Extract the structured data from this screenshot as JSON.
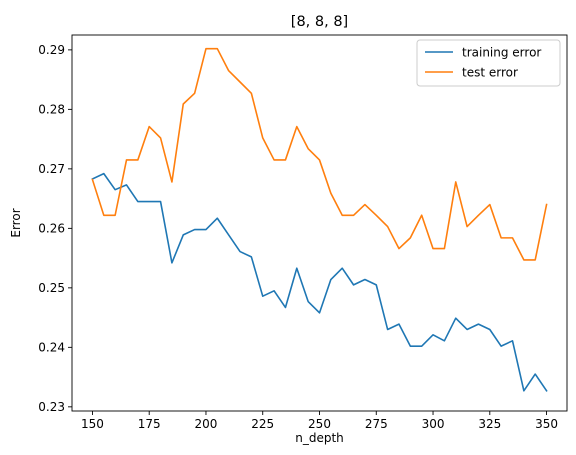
{
  "chart_data": {
    "type": "line",
    "title": "[8, 8, 8]",
    "xlabel": "n_depth",
    "ylabel": "Error",
    "xlim": [
      141,
      359
    ],
    "ylim": [
      0.2293,
      0.2925
    ],
    "xticks": [
      150,
      175,
      200,
      225,
      250,
      275,
      300,
      325,
      350
    ],
    "yticks": [
      0.23,
      0.24,
      0.25,
      0.26,
      0.27,
      0.28,
      0.29
    ],
    "xtick_labels": [
      "150",
      "175",
      "200",
      "225",
      "250",
      "275",
      "300",
      "325",
      "350"
    ],
    "ytick_labels": [
      "0.23",
      "0.24",
      "0.25",
      "0.26",
      "0.27",
      "0.28",
      "0.29"
    ],
    "legend_position": "top-right",
    "grid": false,
    "x": [
      150,
      155,
      160,
      165,
      170,
      175,
      180,
      185,
      190,
      195,
      200,
      205,
      210,
      215,
      220,
      225,
      230,
      235,
      240,
      245,
      250,
      255,
      260,
      265,
      270,
      275,
      280,
      285,
      290,
      295,
      300,
      305,
      310,
      315,
      320,
      325,
      330,
      335,
      340,
      345,
      350
    ],
    "series": [
      {
        "name": "training error",
        "color": "#1f77b4",
        "values": [
          0.2683,
          0.2692,
          0.2665,
          0.2673,
          0.2645,
          0.2645,
          0.2645,
          0.2542,
          0.2589,
          0.2598,
          0.2598,
          0.2617,
          0.2589,
          0.2561,
          0.2552,
          0.2486,
          0.2495,
          0.2467,
          0.2533,
          0.2477,
          0.2458,
          0.2514,
          0.2533,
          0.2505,
          0.2514,
          0.2505,
          0.243,
          0.2439,
          0.2402,
          0.2402,
          0.2421,
          0.2411,
          0.2449,
          0.243,
          0.2439,
          0.243,
          0.2402,
          0.2411,
          0.2327,
          0.2355,
          0.2327
        ]
      },
      {
        "name": "test error",
        "color": "#ff7f0e",
        "values": [
          0.2682,
          0.2622,
          0.2622,
          0.2715,
          0.2715,
          0.2771,
          0.2752,
          0.2678,
          0.2809,
          0.2827,
          0.2902,
          0.2902,
          0.2865,
          0.2846,
          0.2827,
          0.2752,
          0.2715,
          0.2715,
          0.2771,
          0.2734,
          0.2715,
          0.2659,
          0.2622,
          0.2622,
          0.264,
          0.2622,
          0.2603,
          0.2566,
          0.2584,
          0.2622,
          0.2566,
          0.2566,
          0.2678,
          0.2603,
          0.2622,
          0.264,
          0.2584,
          0.2584,
          0.2547,
          0.2547,
          0.264
        ]
      }
    ]
  }
}
